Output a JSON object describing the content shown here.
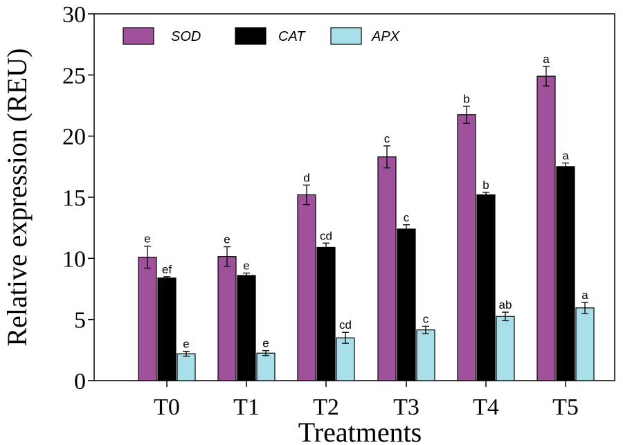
{
  "chart_data": {
    "type": "bar",
    "title": "",
    "xlabel": "Treatments",
    "ylabel": "Relative expression (REU)",
    "ylim": [
      0,
      30
    ],
    "yticks": [
      0,
      5,
      10,
      15,
      20,
      25,
      30
    ],
    "grid": false,
    "legend_position": "top-left",
    "categories": [
      "T0",
      "T1",
      "T2",
      "T3",
      "T4",
      "T5"
    ],
    "series": [
      {
        "name": "SOD",
        "color": "#a0519c",
        "values": [
          10.1,
          10.15,
          15.2,
          18.3,
          21.75,
          24.9
        ],
        "errors": [
          0.9,
          0.8,
          0.8,
          0.9,
          0.7,
          0.8
        ],
        "labels": [
          "e",
          "e",
          "d",
          "c",
          "b",
          "a"
        ]
      },
      {
        "name": "CAT",
        "color": "#000000",
        "values": [
          8.4,
          8.6,
          10.9,
          12.4,
          15.2,
          17.5
        ],
        "errors": [
          0.1,
          0.2,
          0.35,
          0.35,
          0.2,
          0.3
        ],
        "labels": [
          "ef",
          "e",
          "cd",
          "c",
          "b",
          "a"
        ]
      },
      {
        "name": "APX",
        "color": "#a9dfe9",
        "values": [
          2.2,
          2.25,
          3.5,
          4.15,
          5.25,
          5.95
        ],
        "errors": [
          0.2,
          0.2,
          0.45,
          0.3,
          0.35,
          0.45
        ],
        "labels": [
          "e",
          "e",
          "cd",
          "c",
          "ab",
          "a"
        ]
      }
    ]
  }
}
